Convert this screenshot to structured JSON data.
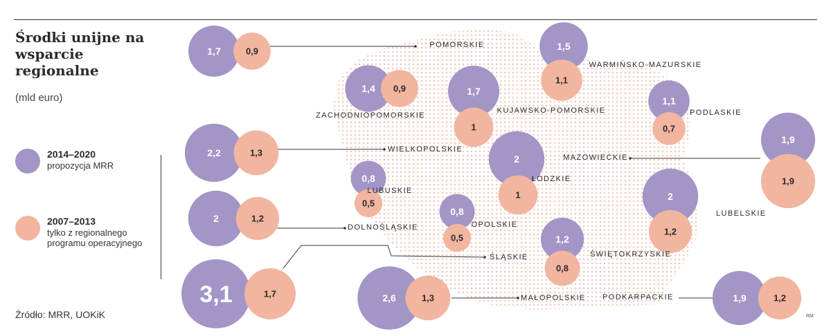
{
  "header": {
    "title": "Środki unijne na wsparcie regionalne",
    "unit": "(mld euro)"
  },
  "legend": {
    "new": {
      "title": "2014–2020",
      "sub": "propozycja MRR"
    },
    "old": {
      "title": "2007–2013",
      "sub": "tylko z regionalnego programu operacyjnego"
    }
  },
  "source": "Źródło: MRR, UOKiK",
  "credit": "RM",
  "colors": {
    "new": "#a395c6",
    "old": "#f2b5a0",
    "map": "#f6ddd4",
    "text": "#2a2a2a"
  },
  "chart_data": {
    "type": "bubble",
    "title": "Środki unijne na wsparcie regionalne",
    "unit": "mld euro",
    "series": [
      {
        "name": "2014–2020",
        "key": "new"
      },
      {
        "name": "2007–2013",
        "key": "old"
      }
    ],
    "regions": [
      {
        "name": "POMORSKIE",
        "new": 1.7,
        "old": 0.9,
        "new_label": "1,7",
        "old_label": "0,9"
      },
      {
        "name": "WARMIŃSKO-MAZURSKIE",
        "new": 1.5,
        "old": 1.1,
        "new_label": "1,5",
        "old_label": "1,1"
      },
      {
        "name": "ZACHODNIOPOMORSKIE",
        "new": 1.4,
        "old": 0.9,
        "new_label": "1,4",
        "old_label": "0,9"
      },
      {
        "name": "KUJAWSKO-POMORSKIE",
        "new": 1.7,
        "old": 1.0,
        "new_label": "1,7",
        "old_label": "1"
      },
      {
        "name": "PODLASKIE",
        "new": 1.1,
        "old": 0.7,
        "new_label": "1,1",
        "old_label": "0,7"
      },
      {
        "name": "WIELKOPOLSKIE",
        "new": 2.2,
        "old": 1.3,
        "new_label": "2,2",
        "old_label": "1,3"
      },
      {
        "name": "MAZOWIECKIE",
        "new": 1.9,
        "old": 1.9,
        "new_label": "1,9",
        "old_label": "1,9"
      },
      {
        "name": "LUBUSKIE",
        "new": 0.8,
        "old": 0.5,
        "new_label": "0,8",
        "old_label": "0,5"
      },
      {
        "name": "ŁÓDZKIE",
        "new": 2.0,
        "old": 1.0,
        "new_label": "2",
        "old_label": "1"
      },
      {
        "name": "LUBELSKIE",
        "new": 2.0,
        "old": 1.2,
        "new_label": "2",
        "old_label": "1,2"
      },
      {
        "name": "DOLNOŚLĄSKIE",
        "new": 2.0,
        "old": 1.2,
        "new_label": "2",
        "old_label": "1,2"
      },
      {
        "name": "OPOLSKIE",
        "new": 0.8,
        "old": 0.5,
        "new_label": "0,8",
        "old_label": "0,5"
      },
      {
        "name": "ŚLĄSKIE",
        "new": 3.1,
        "old": 1.7,
        "new_label": "3,1",
        "old_label": "1,7"
      },
      {
        "name": "ŚWIĘTOKRZYSKIE",
        "new": 1.2,
        "old": 0.8,
        "new_label": "1,2",
        "old_label": "0,8"
      },
      {
        "name": "MAŁOPOLSKIE",
        "new": 2.6,
        "old": 1.3,
        "new_label": "2,6",
        "old_label": "1,3"
      },
      {
        "name": "PODKARPACKIE",
        "new": 1.9,
        "old": 1.2,
        "new_label": "1,9",
        "old_label": "1,2"
      }
    ]
  }
}
